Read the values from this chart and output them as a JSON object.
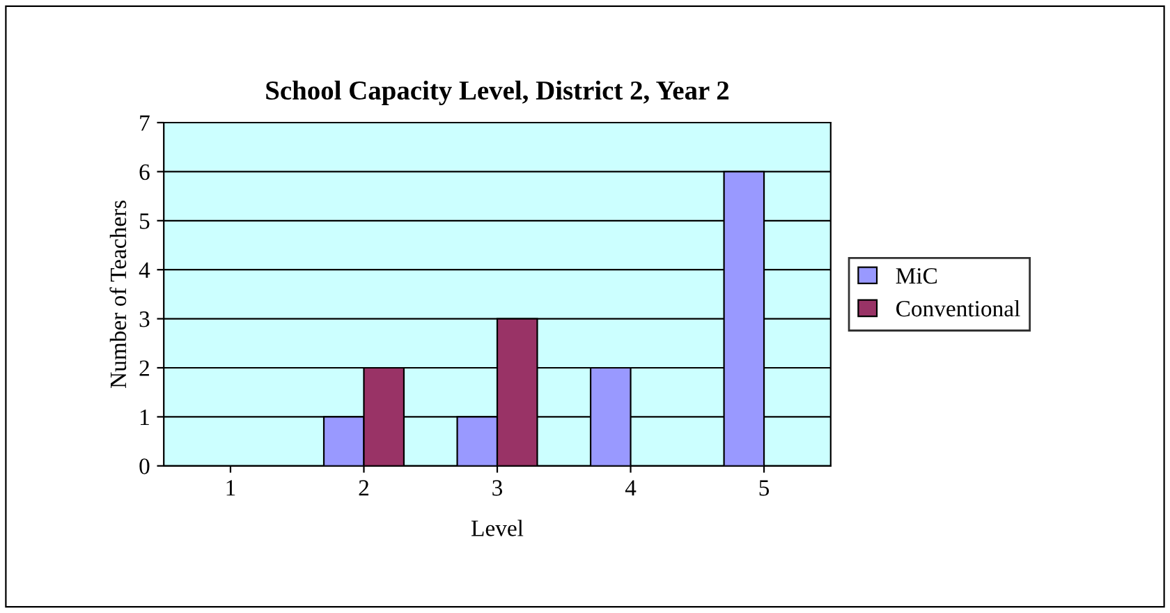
{
  "chart_data": {
    "type": "bar",
    "title": "School Capacity Level, District 2, Year 2",
    "xlabel": "Level",
    "ylabel": "Number of Teachers",
    "categories": [
      "1",
      "2",
      "3",
      "4",
      "5"
    ],
    "series": [
      {
        "name": "MiC",
        "color": "#9999ff",
        "values": [
          0,
          1,
          1,
          2,
          6
        ]
      },
      {
        "name": "Conventional",
        "color": "#993366",
        "values": [
          0,
          2,
          3,
          0,
          0
        ]
      }
    ],
    "ylim": [
      0,
      7
    ],
    "yticks": [
      0,
      1,
      2,
      3,
      4,
      5,
      6,
      7
    ],
    "grid": "y",
    "legend": "right"
  }
}
